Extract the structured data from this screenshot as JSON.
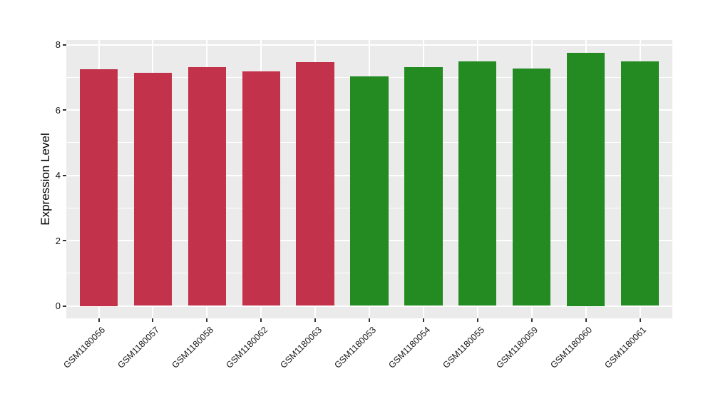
{
  "chart_data": {
    "type": "bar",
    "title": "",
    "xlabel": "",
    "ylabel": "Expression Level",
    "ylim": [
      0,
      8.14
    ],
    "yticks": [
      0,
      2,
      4,
      6,
      8
    ],
    "y_minor_ticks": [
      1,
      3,
      5,
      7
    ],
    "categories": [
      "GSM1180056",
      "GSM1180057",
      "GSM1180058",
      "GSM1180062",
      "GSM1180063",
      "GSM1180053",
      "GSM1180054",
      "GSM1180055",
      "GSM1180059",
      "GSM1180060",
      "GSM1180061"
    ],
    "values": [
      7.25,
      7.13,
      7.32,
      7.17,
      7.47,
      7.03,
      7.31,
      7.49,
      7.27,
      7.75,
      7.48
    ],
    "bar_colors": [
      "#C2334B",
      "#C2334B",
      "#C2334B",
      "#C2334B",
      "#C2334B",
      "#238B22",
      "#238B22",
      "#238B22",
      "#238B22",
      "#238B22",
      "#238B22"
    ],
    "groups": [
      {
        "color": "#C2334B",
        "samples": [
          "GSM1180056",
          "GSM1180057",
          "GSM1180058",
          "GSM1180062",
          "GSM1180063"
        ]
      },
      {
        "color": "#238B22",
        "samples": [
          "GSM1180053",
          "GSM1180054",
          "GSM1180055",
          "GSM1180059",
          "GSM1180060",
          "GSM1180061"
        ]
      }
    ],
    "panel_background": "#EBEBEB",
    "gridline_color": "#FFFFFF",
    "grid": "on",
    "legend": "none",
    "x_label_rotation": 45
  }
}
